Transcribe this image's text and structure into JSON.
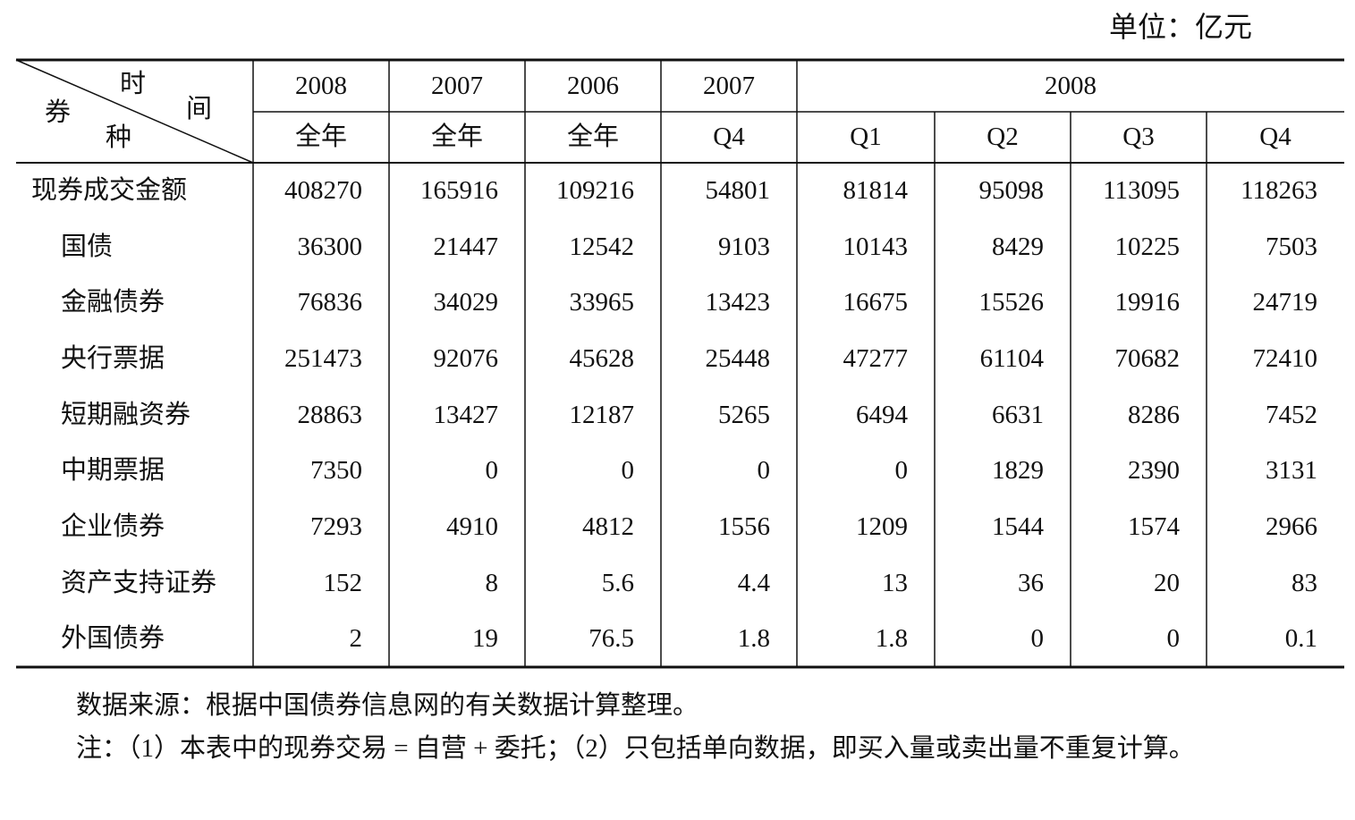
{
  "unit": "单位：亿元",
  "header": {
    "corner": {
      "top": "时",
      "right": "间",
      "left": "券",
      "bottom": "种"
    },
    "row1": [
      "2008",
      "2007",
      "2006",
      "2007",
      "2008"
    ],
    "row2": [
      "全年",
      "全年",
      "全年",
      "Q4",
      "Q1",
      "Q2",
      "Q3",
      "Q4"
    ]
  },
  "table": {
    "rows": [
      {
        "label": "现券成交金额",
        "cells": [
          "408270",
          "165916",
          "109216",
          "54801",
          "81814",
          "95098",
          "113095",
          "118263"
        ]
      },
      {
        "label": "国债",
        "cells": [
          "36300",
          "21447",
          "12542",
          "9103",
          "10143",
          "8429",
          "10225",
          "7503"
        ]
      },
      {
        "label": "金融债券",
        "cells": [
          "76836",
          "34029",
          "33965",
          "13423",
          "16675",
          "15526",
          "19916",
          "24719"
        ]
      },
      {
        "label": "央行票据",
        "cells": [
          "251473",
          "92076",
          "45628",
          "25448",
          "47277",
          "61104",
          "70682",
          "72410"
        ]
      },
      {
        "label": "短期融资券",
        "cells": [
          "28863",
          "13427",
          "12187",
          "5265",
          "6494",
          "6631",
          "8286",
          "7452"
        ]
      },
      {
        "label": "中期票据",
        "cells": [
          "7350",
          "0",
          "0",
          "0",
          "0",
          "1829",
          "2390",
          "3131"
        ]
      },
      {
        "label": "企业债券",
        "cells": [
          "7293",
          "4910",
          "4812",
          "1556",
          "1209",
          "1544",
          "1574",
          "2966"
        ]
      },
      {
        "label": "资产支持证券",
        "cells": [
          "152",
          "8",
          "5.6",
          "4.4",
          "13",
          "36",
          "20",
          "83"
        ]
      },
      {
        "label": "外国债券",
        "cells": [
          "2",
          "19",
          "76.5",
          "1.8",
          "1.8",
          "0",
          "0",
          "0.1"
        ]
      }
    ]
  },
  "notes": [
    "数据来源：根据中国债券信息网的有关数据计算整理。",
    "注：（1）本表中的现券交易 = 自营 + 委托；（2）只包括单向数据，即买入量或卖出量不重复计算。"
  ]
}
